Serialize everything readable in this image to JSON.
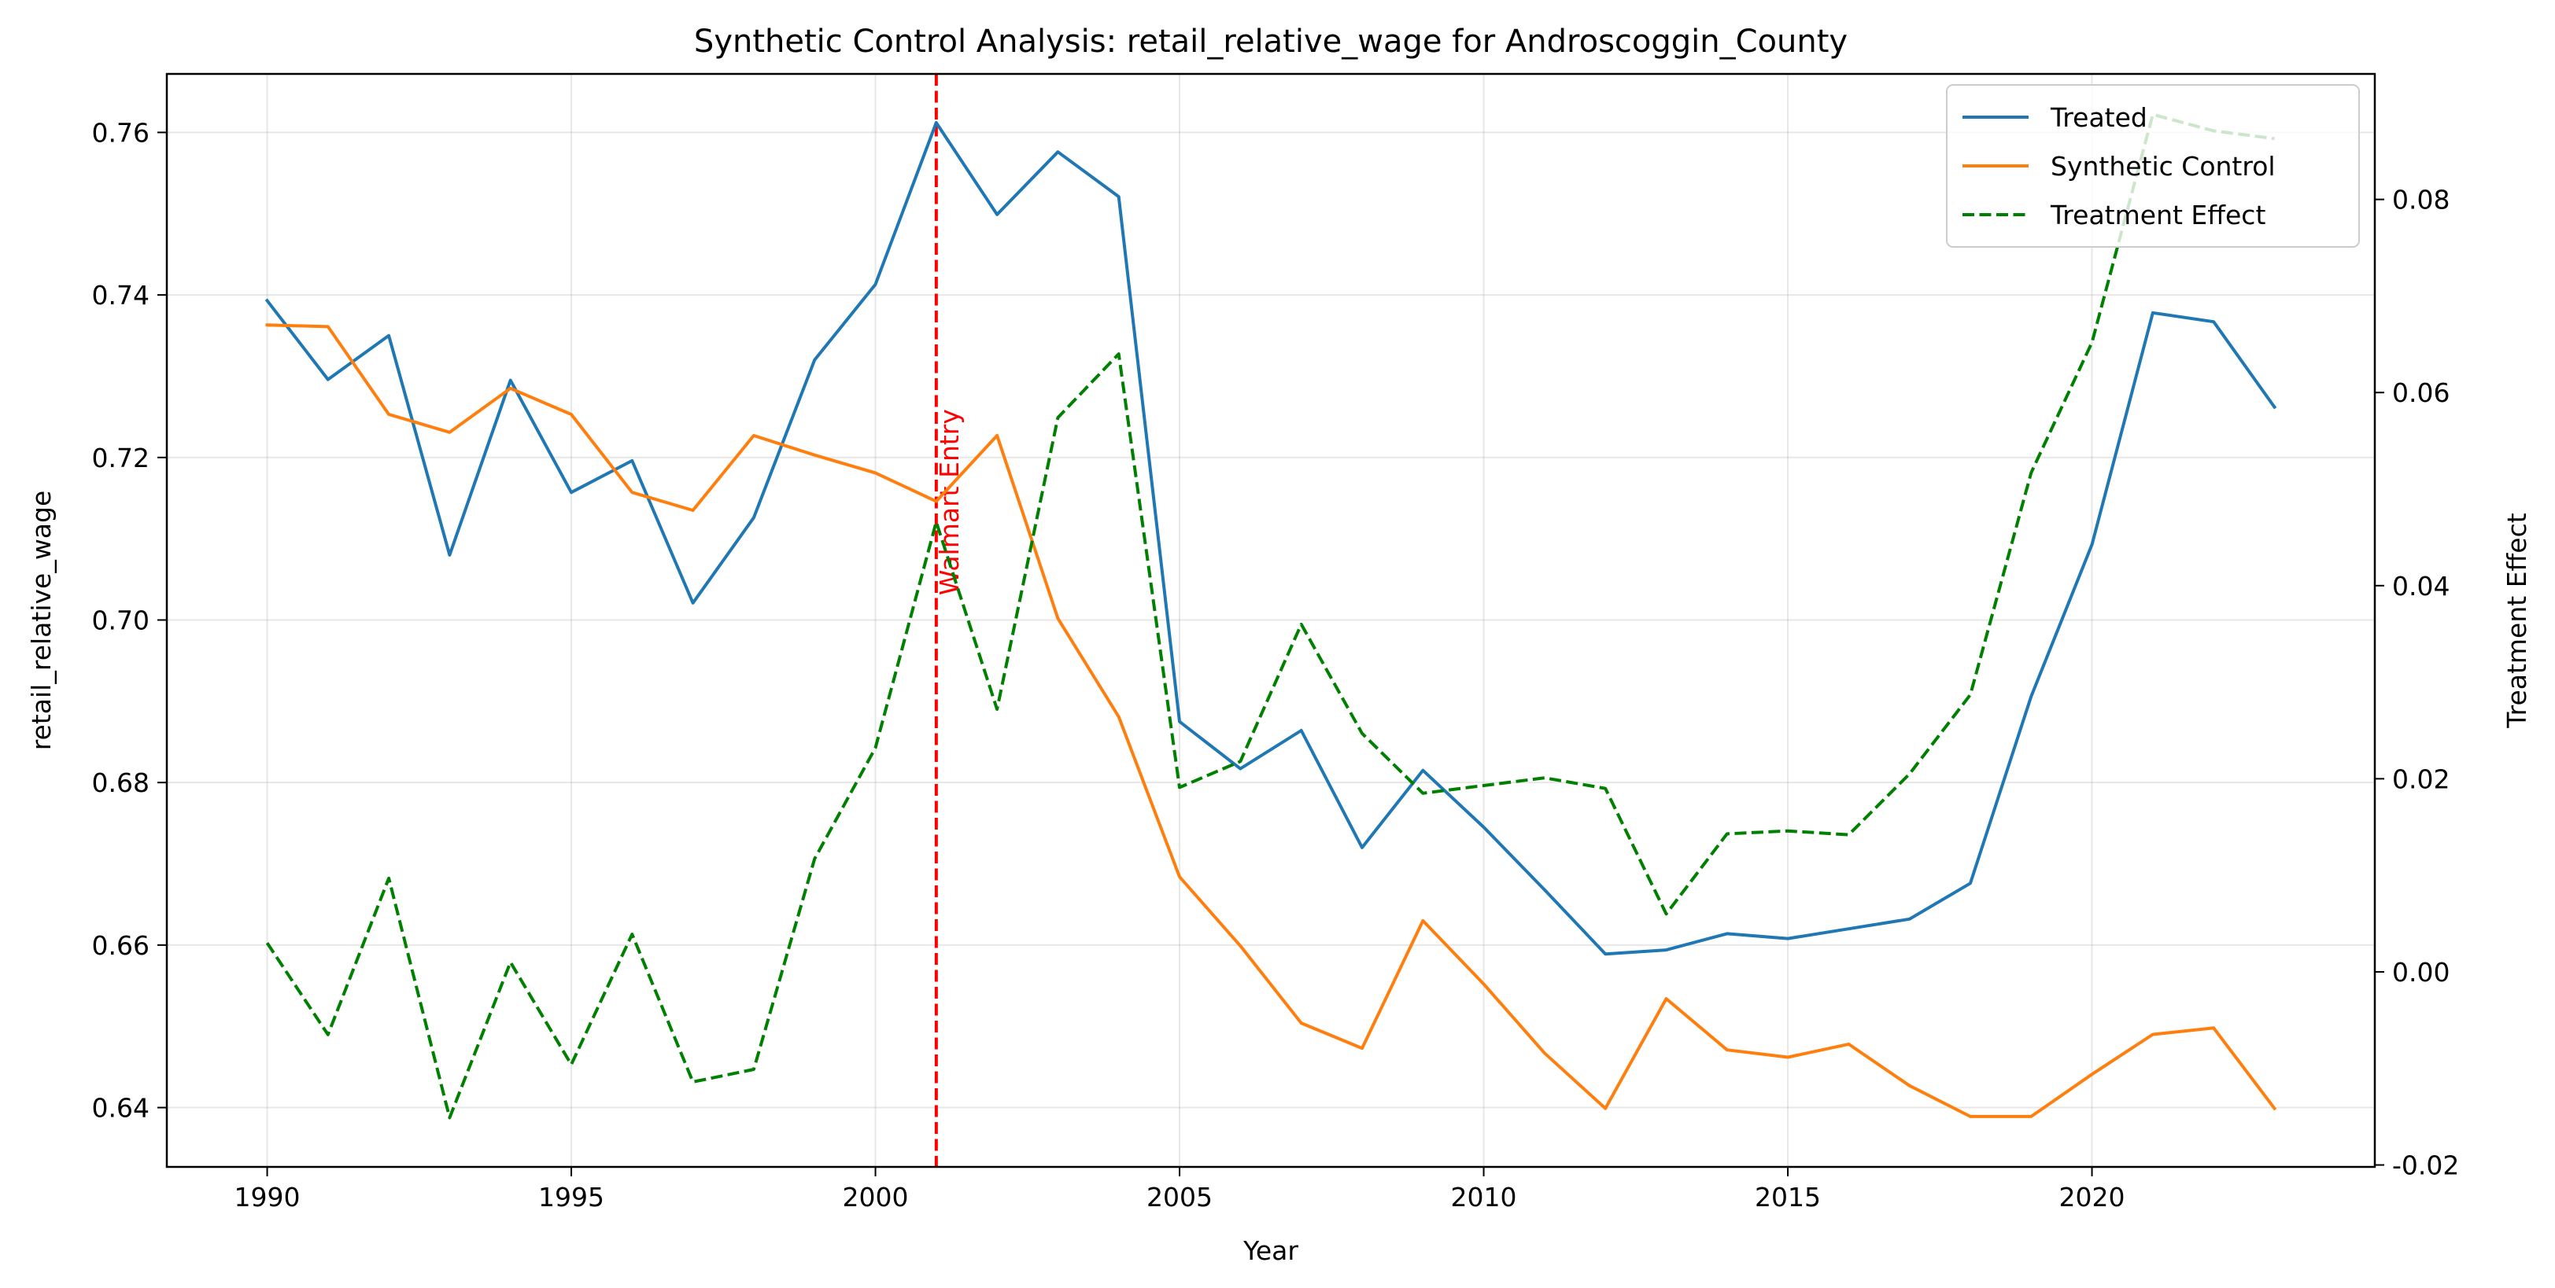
{
  "chart_data": {
    "type": "line",
    "title": "Synthetic Control Analysis: retail_relative_wage for Androscoggin_County",
    "xlabel": "Year",
    "ylabel": "retail_relative_wage",
    "y2label": "Treatment Effect",
    "xlim": [
      1988.35,
      2024.65
    ],
    "ylim": [
      0.6327,
      0.7672
    ],
    "y2lim": [
      -0.0202,
      0.093
    ],
    "x_ticks": [
      1990,
      1995,
      2000,
      2005,
      2010,
      2015,
      2020
    ],
    "y_ticks": [
      0.64,
      0.66,
      0.68,
      0.7,
      0.72,
      0.74,
      0.76
    ],
    "y2_ticks": [
      -0.02,
      0.0,
      0.02,
      0.04,
      0.06,
      0.08
    ],
    "grid": true,
    "legend_position": "top-right",
    "x": [
      1990,
      1991,
      1992,
      1993,
      1994,
      1995,
      1996,
      1997,
      1998,
      1999,
      2000,
      2001,
      2002,
      2003,
      2004,
      2005,
      2006,
      2007,
      2008,
      2009,
      2010,
      2011,
      2012,
      2013,
      2014,
      2015,
      2016,
      2017,
      2018,
      2019,
      2020,
      2021,
      2022,
      2023
    ],
    "series": [
      {
        "name": "Treated",
        "axis": "left",
        "color": "#1f77b4",
        "dash": "solid",
        "values": [
          0.7393,
          0.7296,
          0.735,
          0.708,
          0.7295,
          0.7157,
          0.7196,
          0.7021,
          0.7126,
          0.732,
          0.7413,
          0.7612,
          0.7499,
          0.7576,
          0.7521,
          0.6875,
          0.6817,
          0.6864,
          0.672,
          0.6815,
          0.6745,
          0.6668,
          0.6589,
          0.6594,
          0.6614,
          0.6608,
          0.662,
          0.6632,
          0.6676,
          0.6906,
          0.7093,
          0.7378,
          0.7367,
          0.7262
        ]
      },
      {
        "name": "Synthetic Control",
        "axis": "left",
        "color": "#ff7f0e",
        "dash": "solid",
        "values": [
          0.7363,
          0.7361,
          0.7253,
          0.7231,
          0.7285,
          0.7253,
          0.7157,
          0.7135,
          0.7227,
          0.7203,
          0.7181,
          0.7146,
          0.7227,
          0.7002,
          0.6881,
          0.6684,
          0.6599,
          0.6504,
          0.6473,
          0.663,
          0.6552,
          0.6467,
          0.6399,
          0.6534,
          0.6471,
          0.6462,
          0.6478,
          0.6427,
          0.6389,
          0.6389,
          0.6441,
          0.649,
          0.6498,
          0.6399
        ]
      },
      {
        "name": "Treatment Effect",
        "axis": "right",
        "color": "#008000",
        "dash": "dashed",
        "values": [
          0.003,
          -0.0065,
          0.0097,
          -0.0151,
          0.001,
          -0.0096,
          0.0039,
          -0.0114,
          -0.0101,
          0.0117,
          0.0232,
          0.0466,
          0.0272,
          0.0574,
          0.064,
          0.0191,
          0.0218,
          0.036,
          0.0247,
          0.0185,
          0.0193,
          0.0201,
          0.019,
          0.006,
          0.0143,
          0.0146,
          0.0142,
          0.0205,
          0.0287,
          0.0517,
          0.0652,
          0.0888,
          0.0871,
          0.0863
        ]
      }
    ],
    "annotations": [
      {
        "type": "vline",
        "x": 2001,
        "label": "Walmart Entry",
        "color": "#ff0000",
        "dash": "dashed"
      }
    ]
  }
}
